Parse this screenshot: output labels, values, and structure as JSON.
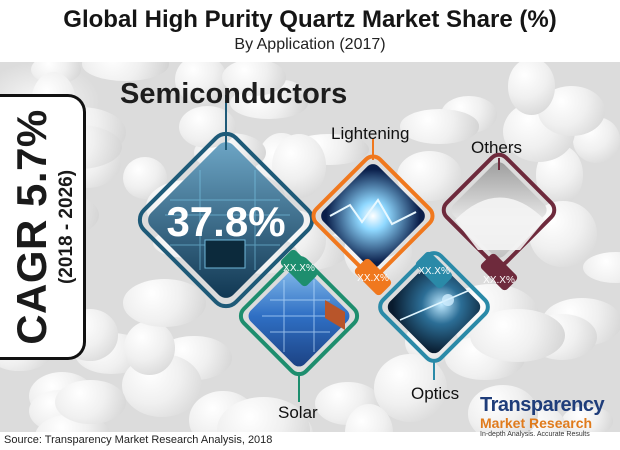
{
  "header": {
    "title": "Global High Purity Quartz Market Share (%)",
    "subtitle": "By Application (2017)"
  },
  "cagr": {
    "value": "CAGR 5.7%",
    "period": "(2018 - 2026)"
  },
  "chart_data": {
    "type": "pie",
    "title": "Global High Purity Quartz Market Share (%)",
    "subtitle": "By Application (2017)",
    "categories": [
      "Semiconductors",
      "Lightening",
      "Others",
      "Solar",
      "Optics"
    ],
    "value_labels": [
      "37.8%",
      "XX.X%",
      "XX.X%",
      "XX.X%",
      "XX.X%"
    ],
    "values": [
      37.8,
      null,
      null,
      null,
      null
    ]
  },
  "colors": {
    "semiconductors": "#1e5a78",
    "lightening": "#f0781e",
    "others": "#6e2a3c",
    "solar": "#1e8e6e",
    "optics": "#2a8aa8"
  },
  "source": "Source: Transparency Market Research Analysis, 2018",
  "logo": {
    "line1": "Transparency",
    "line2": "Market Research",
    "line3": "In-depth Analysis. Accurate Results"
  }
}
